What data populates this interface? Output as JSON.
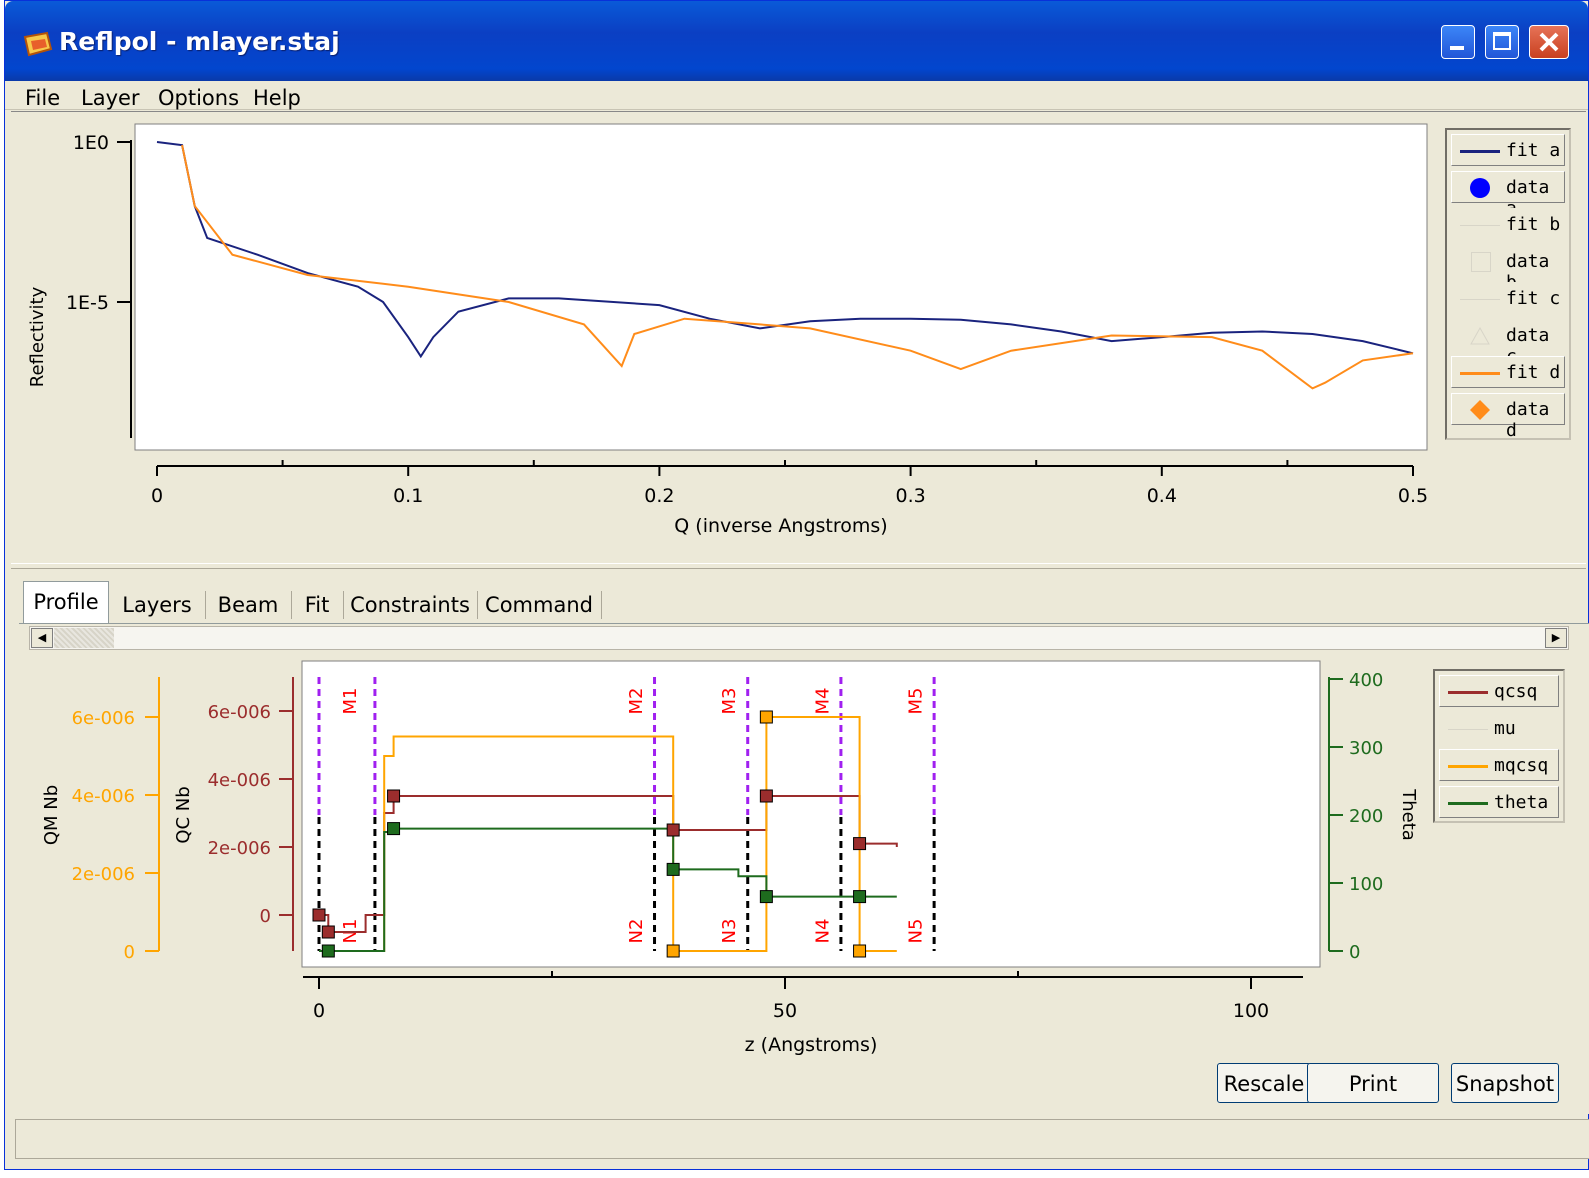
{
  "window": {
    "title": "Reflpol - mlayer.staj"
  },
  "menu": [
    "File",
    "Layer",
    "Options",
    "Help"
  ],
  "reflectivity_plot": {
    "ylabel": "Reflectivity",
    "xlabel": "Q (inverse Angstroms)",
    "yticks": [
      "1E0",
      "1E-5"
    ],
    "xticks": [
      "0",
      "0.1",
      "0.2",
      "0.3",
      "0.4",
      "0.5"
    ],
    "legend": [
      "fit a",
      "data a",
      "fit b",
      "data b",
      "fit c",
      "data c",
      "fit d",
      "data d"
    ]
  },
  "tabs": [
    "Profile",
    "Layers",
    "Beam",
    "Fit",
    "Constraints",
    "Command"
  ],
  "profile_plot": {
    "qm_label": "QM Nb",
    "qc_label": "QC Nb",
    "theta_label": "Theta",
    "xlabel": "z (Angstroms)",
    "qm_ticks": [
      "6e-006",
      "4e-006",
      "2e-006",
      "0"
    ],
    "qc_ticks": [
      "6e-006",
      "4e-006",
      "2e-006",
      "0"
    ],
    "theta_ticks": [
      "400",
      "300",
      "200",
      "100",
      "0"
    ],
    "xticks": [
      "0",
      "50",
      "100"
    ],
    "markers_top": [
      "M1",
      "M2",
      "M3",
      "M4",
      "M5"
    ],
    "markers_bottom": [
      "N1",
      "N2",
      "N3",
      "N4",
      "N5"
    ],
    "legend": [
      "qcsq",
      "mu",
      "mqcsq",
      "theta"
    ]
  },
  "buttons": {
    "rescale": "Rescale",
    "print": "Print",
    "snapshot": "Snapshot"
  },
  "colors": {
    "fit_a": "#1a237e",
    "fit_d": "#ff8c1a",
    "qcsq": "#9b2d2d",
    "mqcsq": "#ffa500",
    "theta": "#1e6b1e",
    "marker": "#a020f0"
  },
  "chart_data": [
    {
      "type": "line",
      "title": "",
      "xlabel": "Q (inverse Angstroms)",
      "ylabel": "Reflectivity",
      "xlim": [
        0,
        0.5
      ],
      "yscale": "log",
      "series": [
        {
          "name": "fit a",
          "x": [
            0,
            0.01,
            0.015,
            0.02,
            0.04,
            0.06,
            0.08,
            0.09,
            0.1,
            0.105,
            0.11,
            0.12,
            0.14,
            0.16,
            0.2,
            0.22,
            0.24,
            0.26,
            0.28,
            0.3,
            0.32,
            0.34,
            0.36,
            0.38,
            0.4,
            0.42,
            0.44,
            0.46,
            0.48,
            0.5
          ],
          "y": [
            1,
            0.8,
            0.01,
            0.001,
            0.0003,
            8e-05,
            3e-05,
            1e-05,
            8e-07,
            2e-07,
            8e-07,
            5e-06,
            1.3e-05,
            1.3e-05,
            8e-06,
            3e-06,
            1.5e-06,
            2.5e-06,
            3e-06,
            3e-06,
            2.8e-06,
            2e-06,
            1.2e-06,
            6e-07,
            8e-07,
            1.1e-06,
            1.2e-06,
            1e-06,
            6e-07,
            2.5e-07
          ]
        },
        {
          "name": "fit d",
          "x": [
            0.01,
            0.015,
            0.03,
            0.06,
            0.1,
            0.14,
            0.17,
            0.185,
            0.19,
            0.21,
            0.24,
            0.26,
            0.3,
            0.32,
            0.34,
            0.38,
            0.42,
            0.44,
            0.46,
            0.465,
            0.48,
            0.5
          ],
          "y": [
            0.8,
            0.01,
            0.0003,
            7e-05,
            3e-05,
            1e-05,
            2e-06,
            1e-07,
            1e-06,
            3e-06,
            2e-06,
            1.5e-06,
            3e-07,
            8e-08,
            3e-07,
            9e-07,
            8e-07,
            3e-07,
            2e-08,
            3e-08,
            1.5e-07,
            2.5e-07
          ]
        }
      ]
    },
    {
      "type": "line",
      "title": "",
      "xlabel": "z (Angstroms)",
      "xlim": [
        -2,
        105
      ],
      "series": [
        {
          "name": "qcsq",
          "x": [
            0,
            1,
            3,
            5,
            7,
            8,
            35,
            38,
            45,
            48,
            55,
            58,
            62
          ],
          "y": [
            0,
            -5e-07,
            -5e-07,
            0,
            3e-06,
            3.5e-06,
            3.5e-06,
            2.5e-06,
            2.5e-06,
            3.5e-06,
            3.5e-06,
            2.1e-06,
            2e-06
          ]
        },
        {
          "name": "mqcsq",
          "x": [
            0,
            5,
            7,
            8,
            35,
            38,
            45,
            48,
            55,
            58,
            62
          ],
          "y": [
            0,
            0,
            5e-06,
            5.5e-06,
            5.5e-06,
            0,
            0,
            6e-06,
            6e-06,
            0,
            0
          ]
        },
        {
          "name": "theta",
          "x": [
            0,
            1,
            5,
            7,
            8,
            35,
            38,
            45,
            48,
            55,
            58,
            62
          ],
          "y": [
            0,
            0,
            0,
            175,
            180,
            180,
            120,
            110,
            80,
            80,
            80,
            80
          ]
        }
      ]
    }
  ]
}
